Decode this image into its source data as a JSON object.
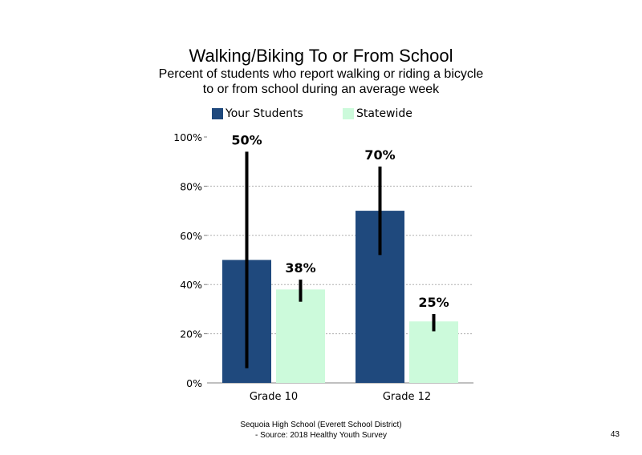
{
  "title": "Walking/Biking  To or From School",
  "subtitle_line1": "Percent of students  who report walking  or riding a bicycle",
  "subtitle_line2": "to or from school during an average week",
  "footer_line1": "Sequoia High  School (Everett School District)",
  "footer_line2": "- Source: 2018 Healthy  Youth Survey",
  "slide_number": "43",
  "chart_data": {
    "type": "bar",
    "categories": [
      "Grade 10",
      "Grade 12"
    ],
    "series": [
      {
        "name": "Your Students",
        "color": "#1f497d",
        "values": [
          50,
          70
        ],
        "labels": [
          "50%",
          "70%"
        ],
        "error_low": [
          6,
          52
        ],
        "error_high": [
          94,
          88
        ]
      },
      {
        "name": "Statewide",
        "color": "#ccfadb",
        "values": [
          38,
          25
        ],
        "labels": [
          "38%",
          "25%"
        ],
        "error_low": [
          33,
          21
        ],
        "error_high": [
          42,
          28
        ]
      }
    ],
    "ylim": [
      0,
      100
    ],
    "yticks": [
      "0%",
      "20%",
      "40%",
      "60%",
      "80%",
      "100%"
    ],
    "grid": true,
    "legend_position": "top"
  }
}
